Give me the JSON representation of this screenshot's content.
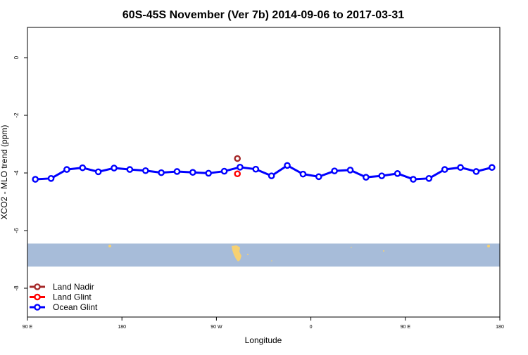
{
  "chart_data": {
    "type": "line",
    "title": "60S-45S November (Ver 7b)   2014-09-06 to 2017-03-31",
    "xlabel": "Longitude",
    "ylabel": "XCO2 - MLO trend (ppm)",
    "x_tick_labels": [
      "90 E",
      "180",
      "90 W",
      "0",
      "90 E",
      "180"
    ],
    "x_ticks": [
      90,
      180,
      270,
      360,
      450,
      540
    ],
    "xlim": [
      90,
      540
    ],
    "y_ticks": [
      0,
      -2,
      -4,
      -6,
      -8
    ],
    "y_tick_labels": [
      "0",
      "-2",
      "-4",
      "-6",
      "-8"
    ],
    "ylim": [
      -9.0,
      1.05
    ],
    "grid": false,
    "legend_position": "bottom-left",
    "series": [
      {
        "name": "Land Nadir",
        "color": "#a52a2a",
        "x": [
          290
        ],
        "y": [
          -3.5
        ]
      },
      {
        "name": "Land Glint",
        "color": "#ff0000",
        "x": [
          290
        ],
        "y": [
          -4.03
        ]
      },
      {
        "name": "Ocean Glint",
        "color": "#0000ff",
        "x": [
          97.5,
          112.5,
          127.5,
          142.5,
          157.5,
          172.5,
          187.5,
          202.5,
          217.5,
          232.5,
          247.5,
          262.5,
          277.5,
          292.5,
          307.5,
          322.5,
          337.5,
          352.5,
          367.5,
          382.5,
          397.5,
          412.5,
          427.5,
          442.5,
          457.5,
          472.5,
          487.5,
          502.5,
          517.5,
          532.5
        ],
        "y": [
          -4.22,
          -4.19,
          -3.88,
          -3.82,
          -3.96,
          -3.83,
          -3.88,
          -3.92,
          -3.99,
          -3.95,
          -3.98,
          -4.01,
          -3.94,
          -3.8,
          -3.87,
          -4.1,
          -3.74,
          -4.04,
          -4.13,
          -3.93,
          -3.9,
          -4.15,
          -4.1,
          -4.02,
          -4.22,
          -4.19,
          -3.88,
          -3.81,
          -3.95,
          -3.81
        ]
      }
    ],
    "map_strip": {
      "ocean_color": "#a7bcd9",
      "land_color": "#f7d172",
      "y_range": [
        -6.45,
        -7.25
      ]
    }
  }
}
